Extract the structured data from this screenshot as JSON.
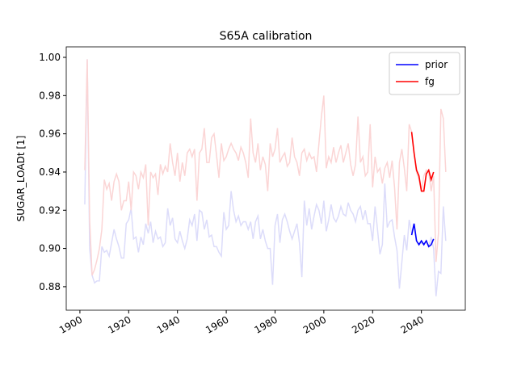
{
  "chart_data": {
    "type": "line",
    "title": "S65A calibration",
    "y_label": "SUGAR_LOADt [1]",
    "x": [
      1902,
      1903,
      1904,
      1905,
      1906,
      1907,
      1908,
      1909,
      1910,
      1911,
      1912,
      1913,
      1914,
      1915,
      1916,
      1917,
      1918,
      1919,
      1920,
      1921,
      1922,
      1923,
      1924,
      1925,
      1926,
      1927,
      1928,
      1929,
      1930,
      1931,
      1932,
      1933,
      1934,
      1935,
      1936,
      1937,
      1938,
      1939,
      1940,
      1941,
      1942,
      1943,
      1944,
      1945,
      1946,
      1947,
      1948,
      1949,
      1950,
      1951,
      1952,
      1953,
      1954,
      1955,
      1956,
      1957,
      1958,
      1959,
      1960,
      1961,
      1962,
      1963,
      1964,
      1965,
      1966,
      1967,
      1968,
      1969,
      1970,
      1971,
      1972,
      1973,
      1974,
      1975,
      1976,
      1977,
      1978,
      1979,
      1980,
      1981,
      1982,
      1983,
      1984,
      1985,
      1986,
      1987,
      1988,
      1989,
      1990,
      1991,
      1992,
      1993,
      1994,
      1995,
      1996,
      1997,
      1998,
      1999,
      2000,
      2001,
      2002,
      2003,
      2004,
      2005,
      2006,
      2007,
      2008,
      2009,
      2010,
      2011,
      2012,
      2013,
      2014,
      2015,
      2016,
      2017,
      2018,
      2019,
      2020,
      2021,
      2022,
      2023,
      2024,
      2025,
      2026,
      2027,
      2028,
      2029,
      2030,
      2031,
      2032,
      2033,
      2034,
      2035,
      2036,
      2037,
      2038,
      2039,
      2040,
      2041,
      2042,
      2043,
      2044,
      2045,
      2046,
      2047,
      2048,
      2049,
      2050
    ],
    "series": [
      {
        "color": "#dcdcfa",
        "values": [
          0.923,
          0.999,
          0.9,
          0.886,
          0.882,
          0.883,
          0.883,
          0.901,
          0.898,
          0.899,
          0.896,
          0.903,
          0.91,
          0.905,
          0.901,
          0.895,
          0.895,
          0.913,
          0.915,
          0.921,
          0.905,
          0.906,
          0.898,
          0.906,
          0.902,
          0.913,
          0.908,
          0.914,
          0.903,
          0.909,
          0.905,
          0.906,
          0.901,
          0.903,
          0.921,
          0.912,
          0.916,
          0.905,
          0.903,
          0.909,
          0.904,
          0.9,
          0.905,
          0.915,
          0.912,
          0.918,
          0.904,
          0.92,
          0.919,
          0.91,
          0.915,
          0.906,
          0.907,
          0.901,
          0.901,
          0.898,
          0.896,
          0.919,
          0.91,
          0.912,
          0.93,
          0.92,
          0.914,
          0.917,
          0.912,
          0.914,
          0.914,
          0.91,
          0.914,
          0.905,
          0.914,
          0.917,
          0.905,
          0.91,
          0.904,
          0.9,
          0.9,
          0.881,
          0.912,
          0.918,
          0.903,
          0.915,
          0.918,
          0.914,
          0.909,
          0.905,
          0.909,
          0.913,
          0.903,
          0.885,
          0.925,
          0.912,
          0.921,
          0.91,
          0.917,
          0.923,
          0.92,
          0.913,
          0.925,
          0.909,
          0.915,
          0.923,
          0.916,
          0.914,
          0.917,
          0.922,
          0.918,
          0.917,
          0.924,
          0.92,
          0.918,
          0.914,
          0.92,
          0.922,
          0.915,
          0.92,
          0.913,
          0.913,
          0.904,
          0.922,
          0.91,
          0.897,
          0.902,
          0.934,
          0.911,
          0.914,
          0.915,
          0.906,
          0.899,
          0.879,
          0.893,
          0.907,
          0.899,
          0.915,
          0.908,
          0.912,
          0.904,
          0.902,
          0.903,
          0.902,
          0.904,
          0.901,
          0.906,
          0.9,
          0.875,
          0.888,
          0.887,
          0.922,
          0.904
        ]
      },
      {
        "color": "#fbd5d5",
        "values": [
          0.941,
          0.999,
          0.915,
          0.886,
          0.889,
          0.894,
          0.9,
          0.91,
          0.936,
          0.931,
          0.934,
          0.925,
          0.935,
          0.939,
          0.935,
          0.92,
          0.925,
          0.925,
          0.935,
          0.92,
          0.94,
          0.938,
          0.931,
          0.94,
          0.937,
          0.944,
          0.912,
          0.94,
          0.937,
          0.939,
          0.928,
          0.944,
          0.939,
          0.943,
          0.94,
          0.955,
          0.945,
          0.938,
          0.95,
          0.935,
          0.945,
          0.938,
          0.95,
          0.952,
          0.948,
          0.952,
          0.925,
          0.95,
          0.952,
          0.963,
          0.945,
          0.945,
          0.958,
          0.96,
          0.949,
          0.937,
          0.955,
          0.946,
          0.948,
          0.952,
          0.955,
          0.952,
          0.95,
          0.946,
          0.953,
          0.95,
          0.945,
          0.937,
          0.968,
          0.95,
          0.945,
          0.955,
          0.941,
          0.948,
          0.944,
          0.93,
          0.955,
          0.948,
          0.952,
          0.963,
          0.945,
          0.948,
          0.95,
          0.943,
          0.945,
          0.958,
          0.948,
          0.945,
          0.938,
          0.95,
          0.952,
          0.946,
          0.95,
          0.947,
          0.948,
          0.94,
          0.955,
          0.969,
          0.98,
          0.942,
          0.948,
          0.945,
          0.953,
          0.945,
          0.95,
          0.954,
          0.945,
          0.95,
          0.955,
          0.944,
          0.938,
          0.944,
          0.969,
          0.945,
          0.948,
          0.938,
          0.94,
          0.965,
          0.932,
          0.948,
          0.94,
          0.942,
          0.934,
          0.942,
          0.945,
          0.937,
          0.946,
          0.932,
          0.91,
          0.945,
          0.952,
          0.942,
          0.93,
          0.965,
          0.961,
          0.95,
          0.94,
          0.936,
          0.93,
          0.938,
          0.941,
          0.94,
          0.93,
          0.938,
          0.893,
          0.908,
          0.973,
          0.968,
          0.94
        ]
      },
      {
        "name": "prior",
        "color": "#0000ff",
        "x": [
          2036,
          2037,
          2038,
          2039,
          2040,
          2041,
          2042,
          2043,
          2044,
          2045
        ],
        "values": [
          0.907,
          0.913,
          0.904,
          0.902,
          0.904,
          0.902,
          0.904,
          0.901,
          0.902,
          0.905
        ]
      },
      {
        "name": "fg",
        "color": "#ff0000",
        "x": [
          2036,
          2037,
          2038,
          2039,
          2040,
          2041,
          2042,
          2043,
          2044,
          2045
        ],
        "values": [
          0.961,
          0.95,
          0.941,
          0.938,
          0.93,
          0.93,
          0.939,
          0.941,
          0.936,
          0.94
        ]
      }
    ],
    "xlim": [
      1894.4,
      2058
    ],
    "xticks": [
      1900,
      1920,
      1940,
      1960,
      1980,
      2000,
      2020,
      2040
    ],
    "ylim": [
      0.8677,
      1.0055
    ],
    "yticks": [
      0.88,
      {
        "value": 0.9,
        "label": "0.90"
      },
      0.92,
      0.94,
      0.96,
      0.98,
      {
        "value": 1,
        "label": "1.00"
      }
    ],
    "legend": "upper right"
  }
}
